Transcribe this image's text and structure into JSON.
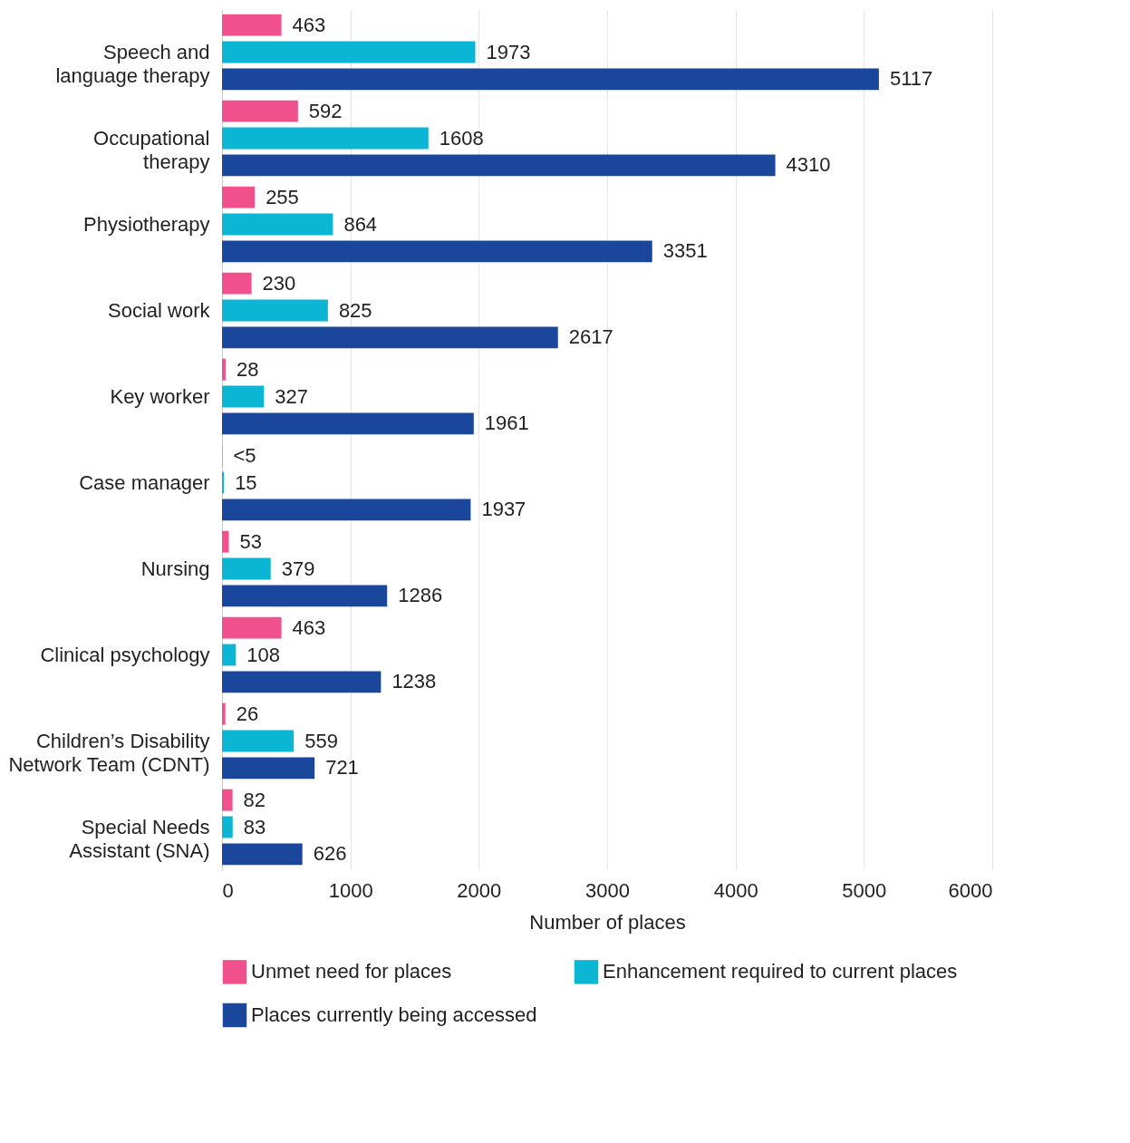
{
  "chart_data": {
    "type": "bar",
    "orientation": "horizontal",
    "categories": [
      "Speech and\nlanguage therapy",
      "Occupational\ntherapy",
      "Physiotherapy",
      "Social work",
      "Key worker",
      "Case manager",
      "Nursing",
      "Clinical psychology",
      "Children’s Disability\nNetwork Team (CDNT)",
      "Special Needs\nAssistant (SNA)"
    ],
    "series": [
      {
        "name": "Unmet need for places",
        "color": "#f0508c",
        "values": [
          463,
          592,
          255,
          230,
          28,
          3,
          53,
          463,
          26,
          82
        ],
        "value_labels": [
          "463",
          "592",
          "255",
          "230",
          "28",
          "<5",
          "53",
          "463",
          "26",
          "82"
        ]
      },
      {
        "name": "Enhancement required to current places",
        "color": "#0bb5d4",
        "values": [
          1973,
          1608,
          864,
          825,
          327,
          15,
          379,
          108,
          559,
          83
        ],
        "value_labels": [
          "1973",
          "1608",
          "864",
          "825",
          "327",
          "15",
          "379",
          "108",
          "559",
          "83"
        ]
      },
      {
        "name": "Places currently being accessed",
        "color": "#1a469c",
        "values": [
          5117,
          4310,
          3351,
          2617,
          1961,
          1937,
          1286,
          1238,
          721,
          626
        ],
        "value_labels": [
          "5117",
          "4310",
          "3351",
          "2617",
          "1961",
          "1937",
          "1286",
          "1238",
          "721",
          "626"
        ]
      }
    ],
    "xlabel": "Number of places",
    "xlim": [
      0,
      6000
    ],
    "xticks": [
      0,
      1000,
      2000,
      3000,
      4000,
      5000,
      6000
    ],
    "grid": "x",
    "legend": "bottom"
  }
}
